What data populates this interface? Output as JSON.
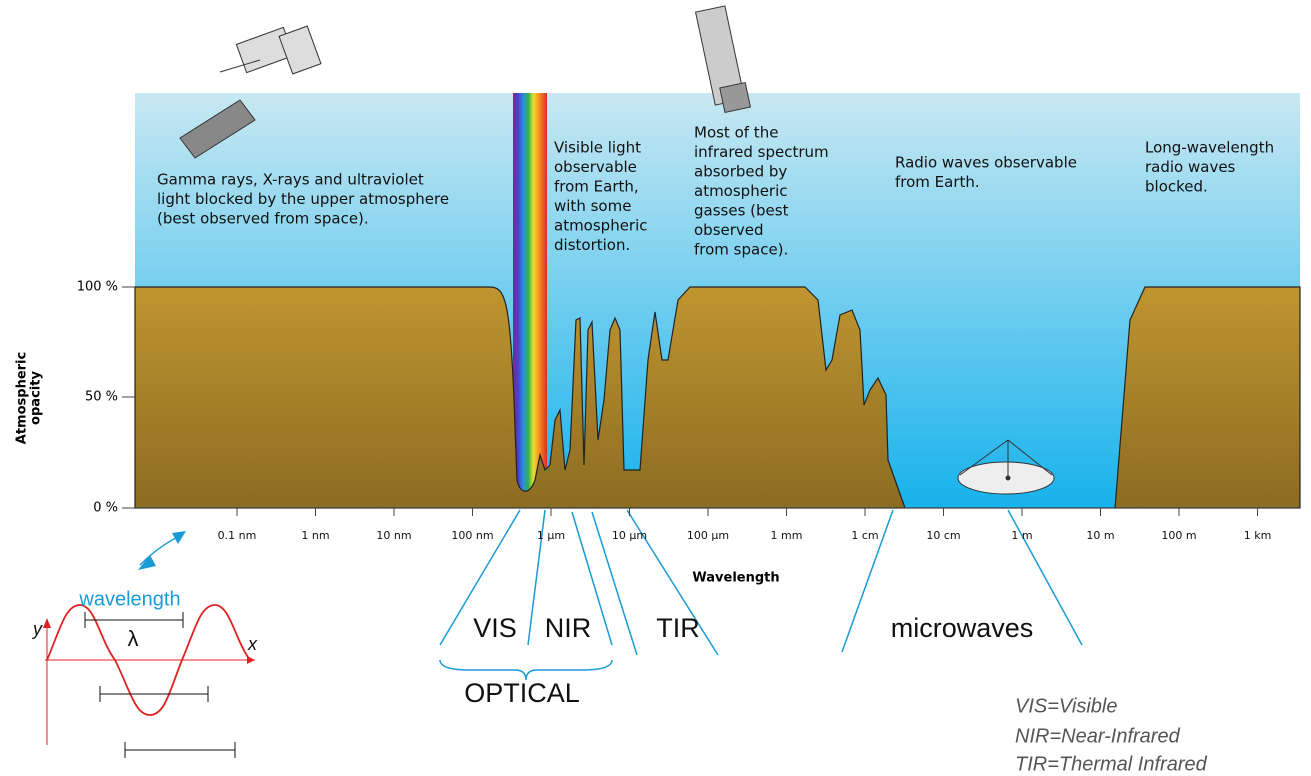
{
  "chart": {
    "y_axis_label_lines": [
      "Atmospheric",
      "opacity"
    ],
    "y_ticks": [
      "100 %",
      "50 %",
      "0 %"
    ],
    "x_ticks": [
      "0.1 nm",
      "1 nm",
      "10 nm",
      "100 nm",
      "1 µm",
      "10 µm",
      "100 µm",
      "1 mm",
      "1 cm",
      "10 cm",
      "1 m",
      "10 m",
      "100 m",
      "1 km"
    ],
    "x_axis_label": "Wavelength",
    "annotations": [
      {
        "lines": [
          "Gamma rays, X-rays and ultraviolet",
          "light blocked by the upper atmosphere",
          "(best observed from space)."
        ]
      },
      {
        "lines": [
          "Visible light",
          "observable",
          "from Earth,",
          "with some",
          "atmospheric",
          "distortion."
        ]
      },
      {
        "lines": [
          "Most of the",
          "infrared spectrum",
          "absorbed by",
          "atmospheric",
          "gasses (best",
          "observed",
          "from space)."
        ]
      },
      {
        "lines": [
          "Radio waves observable",
          "from Earth."
        ]
      },
      {
        "lines": [
          "Long-wavelength",
          "radio waves",
          "blocked."
        ]
      }
    ]
  },
  "bands": [
    "VIS",
    "NIR",
    "TIR",
    "microwaves"
  ],
  "group": "OPTICAL",
  "wavelength_inset": {
    "label": "wavelength",
    "lambda": "λ",
    "x_axis": "x",
    "y_axis": "y"
  },
  "legend": [
    "VIS=Visible",
    "NIR=Near-Infrared",
    "TIR=Thermal Infrared"
  ]
}
